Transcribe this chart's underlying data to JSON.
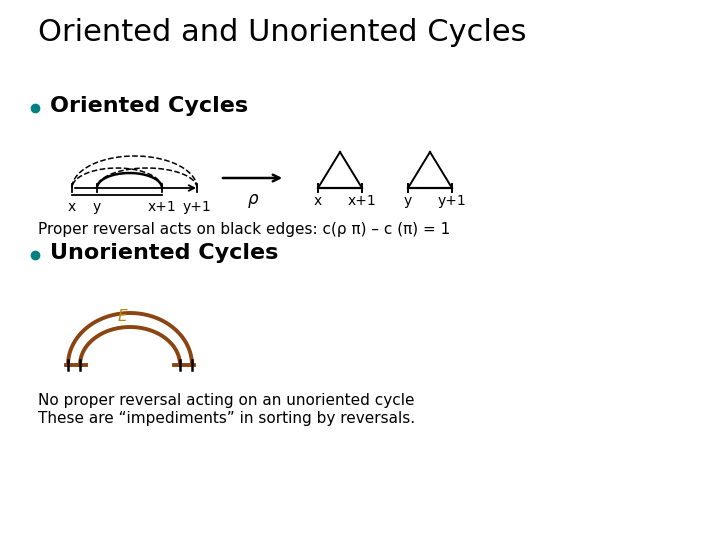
{
  "title": "Oriented and Unoriented Cycles",
  "title_fontsize": 22,
  "bg_color": "#ffffff",
  "bullet_color": "#008080",
  "bullet1": "Oriented Cycles",
  "bullet2": "Unoriented Cycles",
  "bullet_fontsize": 16,
  "text1": "Proper reversal acts on black edges: c(ρ π) – c (π) = 1",
  "text2_line1": "No proper reversal acting on an unoriented cycle",
  "text2_line2": "These are “impediments” in sorting by reversals.",
  "text_fontsize": 11,
  "label_x": "x",
  "label_y": "y",
  "label_x1": "x+1",
  "label_y1": "y+1",
  "rho_label": "ρ",
  "brown_color": "#8B4513",
  "E_color": "#B8860B",
  "E_label": "E"
}
